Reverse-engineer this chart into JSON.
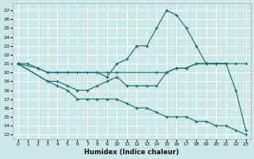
{
  "xlabel": "Humidex (Indice chaleur)",
  "bg_color": "#cde8e8",
  "grid_color": "#ffffff",
  "line_color": "#1a6b6b",
  "x_ticks": [
    0,
    1,
    2,
    3,
    4,
    5,
    6,
    7,
    8,
    9,
    10,
    11,
    12,
    13,
    14,
    15,
    16,
    17,
    18,
    19,
    20,
    21,
    22,
    23
  ],
  "y_ticks": [
    13,
    14,
    15,
    16,
    17,
    18,
    19,
    20,
    21,
    22,
    23,
    24,
    25,
    26,
    27
  ],
  "ylim": [
    12.5,
    27.8
  ],
  "xlim": [
    -0.5,
    23.5
  ],
  "line1_x": [
    0,
    1,
    2,
    3,
    4,
    5,
    6,
    7,
    8,
    9,
    10,
    11,
    12,
    13,
    14,
    15,
    16,
    17,
    18,
    19,
    20,
    21,
    22,
    23
  ],
  "line1_y": [
    21,
    21,
    20.5,
    20,
    20,
    20,
    20,
    20,
    20,
    19.5,
    21,
    21.5,
    23,
    23,
    25,
    27,
    26.5,
    25,
    23,
    21,
    21,
    21,
    18,
    13.5
  ],
  "line2_x": [
    0,
    2,
    3,
    9,
    10,
    14,
    15,
    16,
    17,
    18,
    19,
    20,
    21
  ],
  "line2_y": [
    21,
    20.5,
    20,
    20,
    20,
    20,
    20,
    20.5,
    20.5,
    21,
    21,
    21,
    21
  ],
  "line3_x": [
    0,
    3,
    4,
    5,
    6,
    7,
    8,
    9,
    10,
    11,
    12,
    13,
    14,
    15,
    16,
    17,
    18,
    19,
    20,
    21,
    22,
    23
  ],
  "line3_y": [
    21,
    19,
    18.5,
    18,
    17,
    17,
    17,
    17,
    17,
    16.5,
    16,
    16,
    15.5,
    15,
    15,
    15,
    14.5,
    14.5,
    14,
    14,
    13.5,
    13
  ],
  "line4_x": [
    0,
    3,
    4,
    5,
    6,
    7,
    8,
    9,
    10,
    11,
    12,
    13,
    14,
    15,
    16,
    17,
    18,
    19,
    20,
    21,
    22,
    23
  ],
  "line4_y": [
    21,
    19,
    19,
    18.5,
    18,
    18,
    18.5,
    19,
    19.5,
    18.5,
    18.5,
    18.5,
    18.5,
    20,
    20.5,
    20.5,
    21,
    21,
    21,
    21,
    21,
    21
  ]
}
